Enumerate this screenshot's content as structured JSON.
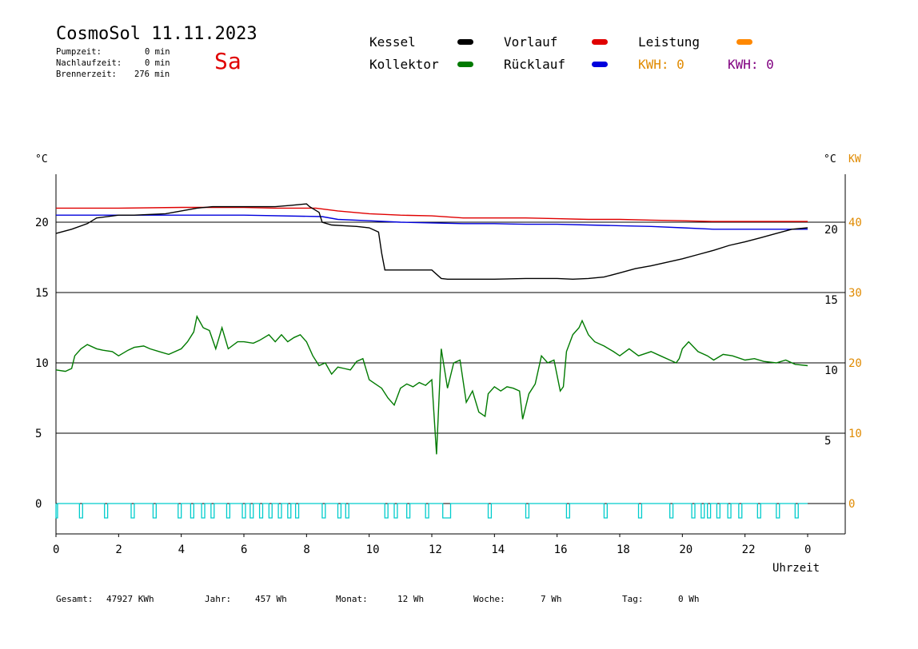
{
  "header": {
    "title": "CosmoSol 11.11.2023",
    "weekday": "Sa",
    "pumpzeit_label": "Pumpzeit:",
    "pumpzeit_value": "0 min",
    "nachlaufzeit_label": "Nachlaufzeit:",
    "nachlaufzeit_value": "0 min",
    "brennerzeit_label": "Brennerzeit:",
    "brennerzeit_value": "276 min"
  },
  "legend": {
    "kessel": "Kessel",
    "kollektor": "Kollektor",
    "vorlauf": "Vorlauf",
    "ruecklauf": "Rücklauf",
    "leistung": "Leistung",
    "kwh1": "KWH: 0",
    "kwh2": "KWH: 0"
  },
  "footer": {
    "gesamt_label": "Gesamt:",
    "gesamt_value": "47927 KWh",
    "jahr_label": "Jahr:",
    "jahr_value": "457 Wh",
    "monat_label": "Monat:",
    "monat_value": "12 Wh",
    "woche_label": "Woche:",
    "woche_value": "7 Wh",
    "tag_label": "Tag:",
    "tag_value": "0 Wh"
  },
  "colors": {
    "kessel": "#000000",
    "kollektor": "#007a00",
    "vorlauf": "#e00000",
    "ruecklauf": "#0000dd",
    "leistung": "#ff8800",
    "kwh2": "#800080",
    "pump": "#00cccc",
    "kw_axis": "#e08a00"
  },
  "chart_data": {
    "type": "line",
    "xlabel": "Uhrzeit",
    "ylabel_left": "°C",
    "ylabel_right": "°C",
    "ylabel_right2": "KW",
    "x_ticks": [
      "0",
      "2",
      "4",
      "6",
      "8",
      "10",
      "12",
      "14",
      "16",
      "18",
      "20",
      "22",
      "0"
    ],
    "xlim": [
      0,
      24
    ],
    "ylim": [
      -1.7,
      22.5
    ],
    "y_ticks_left": [
      "0",
      "5",
      "10",
      "15",
      "20"
    ],
    "y_ticks_right": [
      "5",
      "10",
      "15",
      "20"
    ],
    "y_ticks_kw": [
      "0",
      "10",
      "20",
      "30",
      "40"
    ],
    "grid_y": [
      0,
      5,
      10,
      15,
      20
    ],
    "series": [
      {
        "name": "Vorlauf",
        "key": "vorlauf",
        "x": [
          0,
          2,
          4,
          6,
          7,
          8.3,
          9,
          10,
          11,
          12,
          13,
          14,
          15,
          16,
          17,
          18,
          19,
          20,
          21,
          22,
          23,
          24
        ],
        "y": [
          21,
          21,
          21.05,
          21.05,
          21,
          21,
          20.8,
          20.6,
          20.5,
          20.45,
          20.3,
          20.3,
          20.3,
          20.25,
          20.2,
          20.2,
          20.15,
          20.1,
          20.05,
          20.05,
          20.05,
          20.05
        ]
      },
      {
        "name": "Rücklauf",
        "key": "ruecklauf",
        "x": [
          0,
          2,
          4,
          6,
          8.5,
          9,
          10,
          11,
          12,
          13,
          14,
          15,
          16,
          17,
          18,
          19,
          20,
          21,
          22,
          23,
          24
        ],
        "y": [
          20.5,
          20.5,
          20.5,
          20.5,
          20.4,
          20.2,
          20.1,
          20,
          19.95,
          19.9,
          19.9,
          19.85,
          19.85,
          19.8,
          19.75,
          19.7,
          19.6,
          19.5,
          19.5,
          19.5,
          19.5
        ]
      },
      {
        "name": "Kessel",
        "key": "kessel",
        "x": [
          0,
          0.5,
          1,
          1.3,
          2,
          2.5,
          3,
          3.5,
          4,
          4.5,
          5,
          6,
          7,
          7.5,
          8,
          8.1,
          8.4,
          8.5,
          8.8,
          9.2,
          9.6,
          10,
          10.3,
          10.4,
          10.5,
          11,
          12,
          12.3,
          12.5,
          13,
          14,
          15,
          16,
          16.5,
          17,
          17.5,
          18,
          18.5,
          19,
          19.5,
          20,
          20.5,
          21,
          21.5,
          22,
          22.5,
          23,
          23.5,
          24
        ],
        "y": [
          19.2,
          19.5,
          19.9,
          20.3,
          20.5,
          20.5,
          20.55,
          20.6,
          20.8,
          21,
          21.1,
          21.1,
          21.1,
          21.2,
          21.3,
          21.1,
          20.7,
          20,
          19.8,
          19.75,
          19.7,
          19.6,
          19.3,
          17.8,
          16.6,
          16.6,
          16.6,
          16,
          15.95,
          15.95,
          15.95,
          16,
          16,
          15.95,
          16,
          16.1,
          16.4,
          16.7,
          16.9,
          17.15,
          17.4,
          17.7,
          18,
          18.35,
          18.6,
          18.9,
          19.2,
          19.5,
          19.6
        ]
      },
      {
        "name": "Kollektor",
        "key": "kollektor",
        "x": [
          0,
          0.3,
          0.5,
          0.6,
          0.8,
          1,
          1.3,
          1.5,
          1.8,
          2,
          2.3,
          2.5,
          2.8,
          3,
          3.3,
          3.6,
          4,
          4.2,
          4.4,
          4.5,
          4.7,
          4.9,
          5.1,
          5.3,
          5.5,
          5.8,
          6,
          6.3,
          6.5,
          6.8,
          7,
          7.2,
          7.4,
          7.6,
          7.8,
          8,
          8.2,
          8.4,
          8.6,
          8.8,
          9,
          9.2,
          9.4,
          9.6,
          9.8,
          10,
          10.2,
          10.4,
          10.6,
          10.8,
          11,
          11.2,
          11.4,
          11.6,
          11.8,
          12,
          12.05,
          12.15,
          12.3,
          12.5,
          12.7,
          12.9,
          13.1,
          13.3,
          13.5,
          13.7,
          13.8,
          14,
          14.2,
          14.4,
          14.6,
          14.8,
          14.9,
          15.1,
          15.3,
          15.5,
          15.7,
          15.9,
          16.1,
          16.2,
          16.3,
          16.5,
          16.7,
          16.8,
          17,
          17.2,
          17.5,
          17.8,
          18,
          18.3,
          18.6,
          19,
          19.3,
          19.6,
          19.8,
          19.9,
          20,
          20.2,
          20.5,
          20.8,
          21,
          21.3,
          21.6,
          22,
          22.3,
          22.6,
          23,
          23.3,
          23.6,
          24
        ],
        "y": [
          9.5,
          9.4,
          9.6,
          10.5,
          11,
          11.3,
          11,
          10.9,
          10.8,
          10.5,
          10.9,
          11.1,
          11.2,
          11,
          10.8,
          10.6,
          11,
          11.5,
          12.2,
          13.3,
          12.5,
          12.3,
          11,
          12.5,
          11,
          11.5,
          11.5,
          11.4,
          11.6,
          12,
          11.5,
          12,
          11.5,
          11.8,
          12,
          11.5,
          10.5,
          9.8,
          10,
          9.2,
          9.7,
          9.6,
          9.5,
          10.1,
          10.3,
          8.8,
          8.5,
          8.2,
          7.5,
          7,
          8.2,
          8.5,
          8.3,
          8.6,
          8.4,
          8.8,
          7,
          3.5,
          11,
          8.2,
          10,
          10.2,
          7.2,
          8,
          6.5,
          6.2,
          7.8,
          8.3,
          8,
          8.3,
          8.2,
          8,
          6,
          7.8,
          8.5,
          10.5,
          10,
          10.2,
          8,
          8.3,
          10.8,
          12,
          12.5,
          13,
          12,
          11.5,
          11.2,
          10.8,
          10.5,
          11,
          10.5,
          10.8,
          10.5,
          10.2,
          10,
          10.3,
          11,
          11.5,
          10.8,
          10.5,
          10.2,
          10.6,
          10.5,
          10.2,
          10.3,
          10.1,
          10,
          10.2,
          9.9,
          9.8
        ]
      }
    ],
    "pump_on_intervals": [
      [
        0,
        0.05
      ],
      [
        0.75,
        0.85
      ],
      [
        1.55,
        1.65
      ],
      [
        2.4,
        2.5
      ],
      [
        3.1,
        3.2
      ],
      [
        3.9,
        4.0
      ],
      [
        4.3,
        4.4
      ],
      [
        4.65,
        4.75
      ],
      [
        4.95,
        5.05
      ],
      [
        5.45,
        5.55
      ],
      [
        5.95,
        6.05
      ],
      [
        6.2,
        6.3
      ],
      [
        6.5,
        6.6
      ],
      [
        6.8,
        6.9
      ],
      [
        7.1,
        7.2
      ],
      [
        7.4,
        7.5
      ],
      [
        7.65,
        7.75
      ],
      [
        8.5,
        8.6
      ],
      [
        9.0,
        9.1
      ],
      [
        9.25,
        9.35
      ],
      [
        10.5,
        10.6
      ],
      [
        10.8,
        10.9
      ],
      [
        11.2,
        11.3
      ],
      [
        11.8,
        11.9
      ],
      [
        12.35,
        12.6
      ],
      [
        13.8,
        13.9
      ],
      [
        15.0,
        15.1
      ],
      [
        16.3,
        16.4
      ],
      [
        17.5,
        17.6
      ],
      [
        18.6,
        18.7
      ],
      [
        19.6,
        19.7
      ],
      [
        20.3,
        20.4
      ],
      [
        20.6,
        20.7
      ],
      [
        20.8,
        20.9
      ],
      [
        21.1,
        21.2
      ],
      [
        21.45,
        21.55
      ],
      [
        21.8,
        21.9
      ],
      [
        22.4,
        22.5
      ],
      [
        23.0,
        23.1
      ],
      [
        23.6,
        23.7
      ]
    ]
  }
}
